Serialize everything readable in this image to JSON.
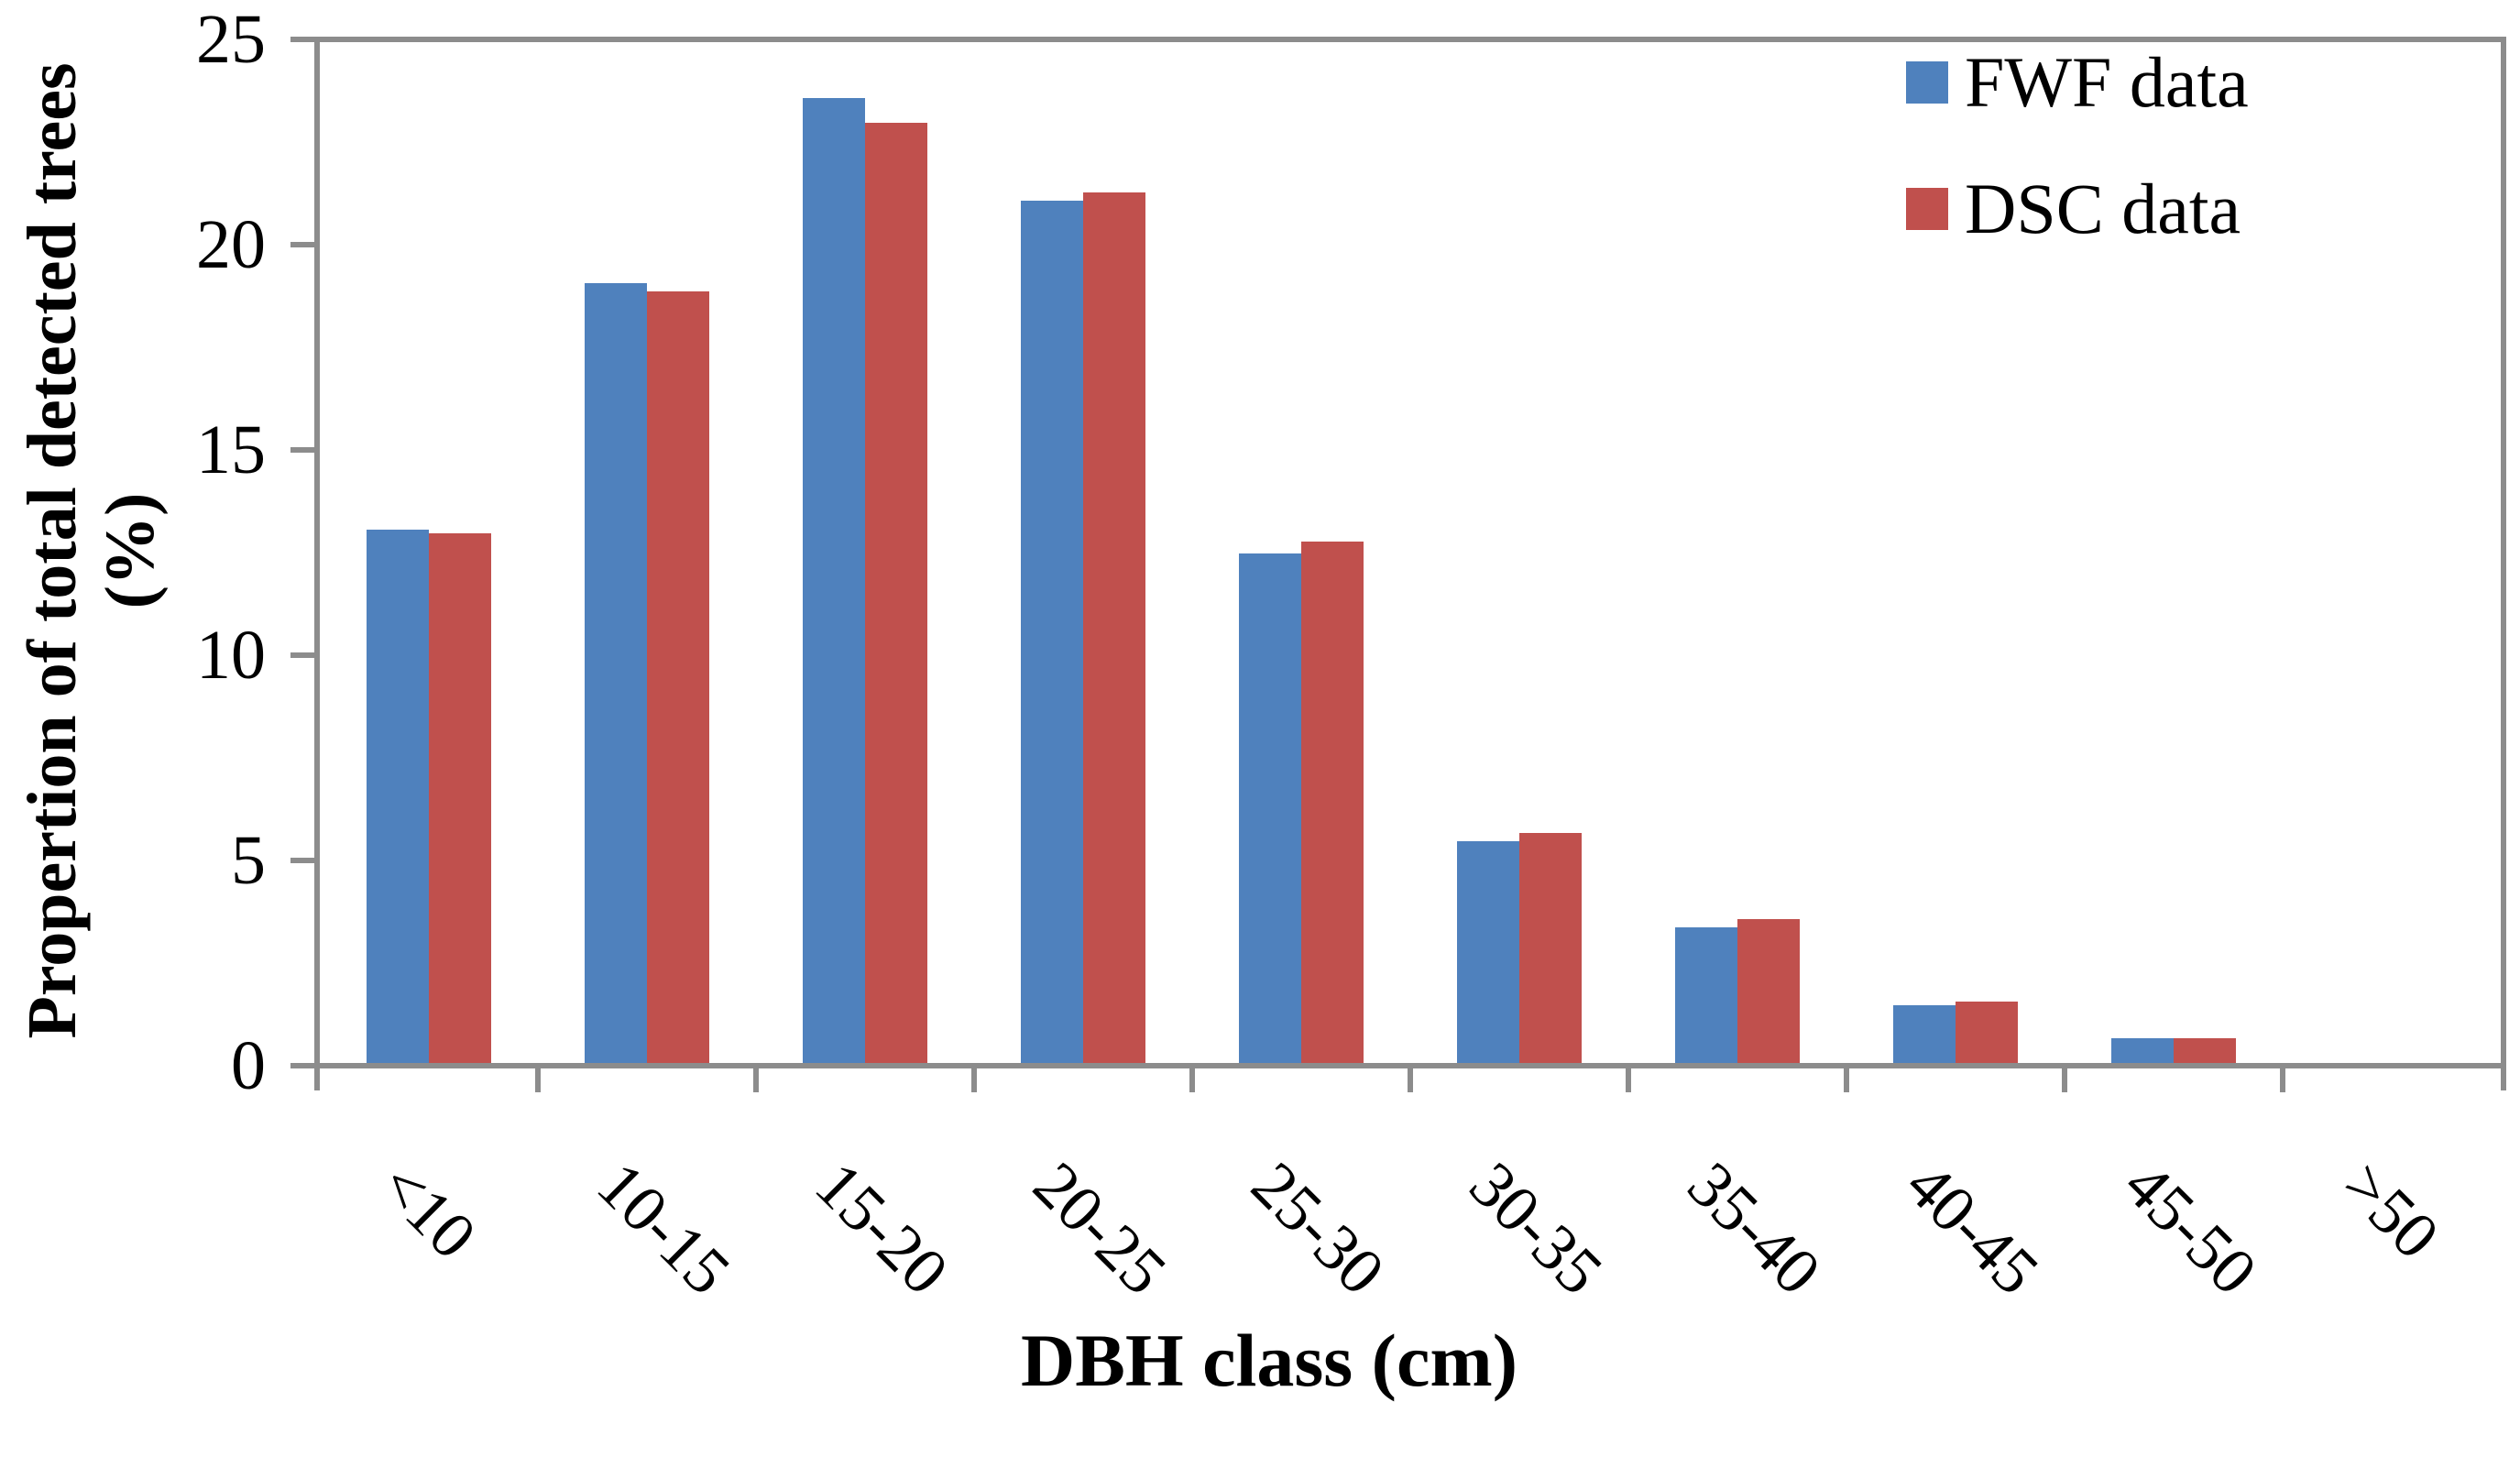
{
  "chart_data": {
    "type": "bar",
    "title": "",
    "categories": [
      "<10",
      "10-15",
      "15-20",
      "20-25",
      "25-30",
      "30-35",
      "35-40",
      "40-45",
      "45-50",
      ">50"
    ],
    "series": [
      {
        "name": "FWF data",
        "color": "#4F81BD",
        "values": [
          13.0,
          19.0,
          23.5,
          21.0,
          12.4,
          5.4,
          3.3,
          1.4,
          0.6,
          0
        ]
      },
      {
        "name": "DSC data",
        "color": "#C0504D",
        "values": [
          12.9,
          18.8,
          22.9,
          21.2,
          12.7,
          5.6,
          3.5,
          1.5,
          0.6,
          0
        ]
      }
    ],
    "xlabel": "DBH class (cm)",
    "ylabel_line1": "Propertion of total detected trees",
    "ylabel_line2": "(%)",
    "ylim": [
      0,
      25
    ],
    "yticks": [
      0,
      5,
      10,
      15,
      20,
      25
    ],
    "grid": false,
    "legend_position": "top-right-inside",
    "axis_color": "#8C8C8C",
    "text_color": "#000000"
  }
}
